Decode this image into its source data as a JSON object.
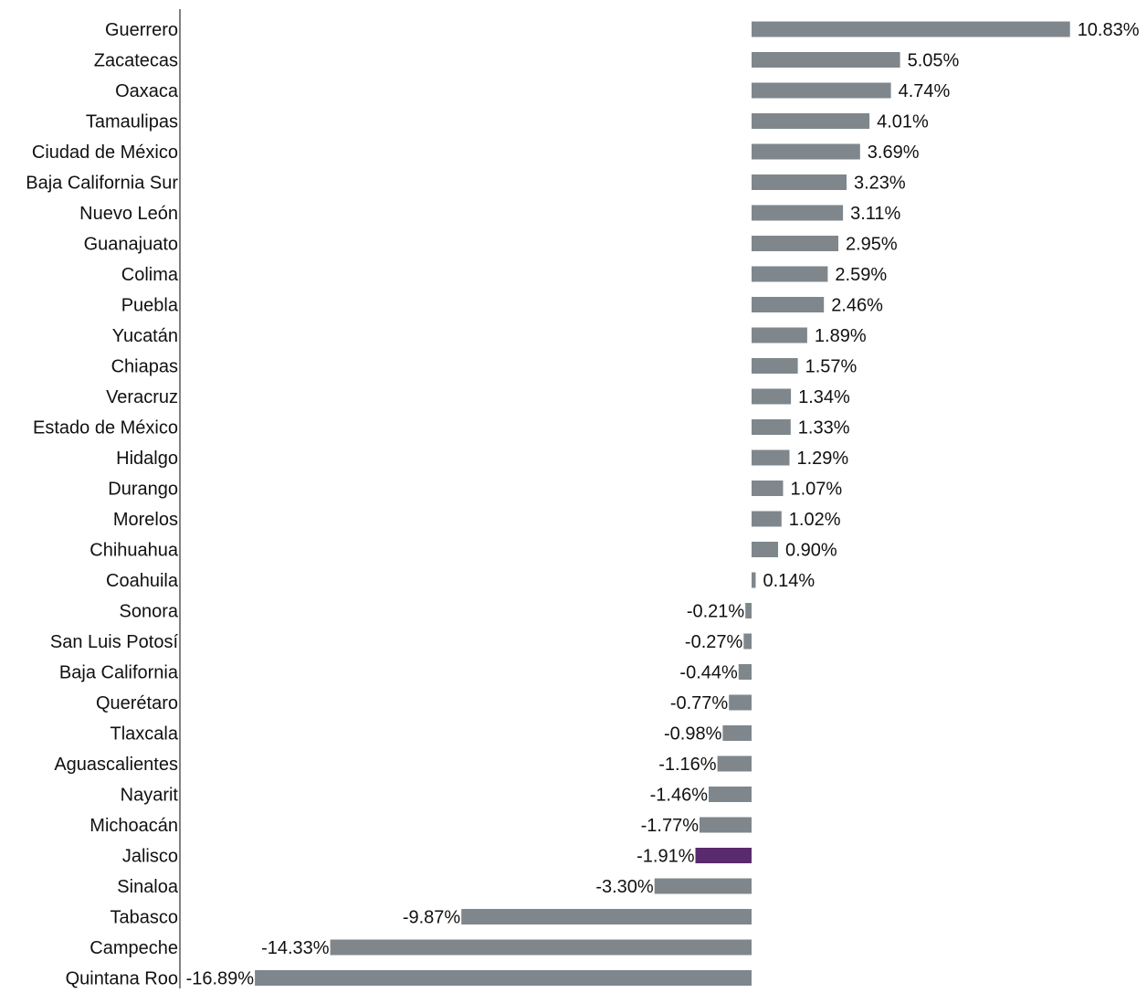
{
  "chart_data": {
    "type": "bar",
    "orientation": "horizontal",
    "title": "",
    "xlabel": "",
    "ylabel": "",
    "unit": "%",
    "xlim": [
      -16.89,
      10.83
    ],
    "grid": false,
    "legend": "none",
    "colors": {
      "default": "#7f878c",
      "highlight": "#5a2a6e"
    },
    "highlight_category": "Jalisco",
    "categories": [
      "Guerrero",
      "Zacatecas",
      "Oaxaca",
      "Tamaulipas",
      "Ciudad de México",
      "Baja California Sur",
      "Nuevo León",
      "Guanajuato",
      "Colima",
      "Puebla",
      "Yucatán",
      "Chiapas",
      "Veracruz",
      "Estado de México",
      "Hidalgo",
      "Durango",
      "Morelos",
      "Chihuahua",
      "Coahuila",
      "Sonora",
      "San Luis Potosí",
      "Baja California",
      "Querétaro",
      "Tlaxcala",
      "Aguascalientes",
      "Nayarit",
      "Michoacán",
      "Jalisco",
      "Sinaloa",
      "Tabasco",
      "Campeche",
      "Quintana Roo"
    ],
    "values": [
      10.83,
      5.05,
      4.74,
      4.01,
      3.69,
      3.23,
      3.11,
      2.95,
      2.59,
      2.46,
      1.89,
      1.57,
      1.34,
      1.33,
      1.29,
      1.07,
      1.02,
      0.9,
      0.14,
      -0.21,
      -0.27,
      -0.44,
      -0.77,
      -0.98,
      -1.16,
      -1.46,
      -1.77,
      -1.91,
      -3.3,
      -9.87,
      -14.33,
      -16.89
    ],
    "data_labels": [
      "10.83%",
      "5.05%",
      "4.74%",
      "4.01%",
      "3.69%",
      "3.23%",
      "3.11%",
      "2.95%",
      "2.59%",
      "2.46%",
      "1.89%",
      "1.57%",
      "1.34%",
      "1.33%",
      "1.29%",
      "1.07%",
      "1.02%",
      "0.90%",
      "0.14%",
      "-0.21%",
      "-0.27%",
      "-0.44%",
      "-0.77%",
      "-0.98%",
      "-1.16%",
      "-1.46%",
      "-1.77%",
      "-1.91%",
      "-3.30%",
      "-9.87%",
      "-14.33%",
      "-16.89%"
    ]
  }
}
